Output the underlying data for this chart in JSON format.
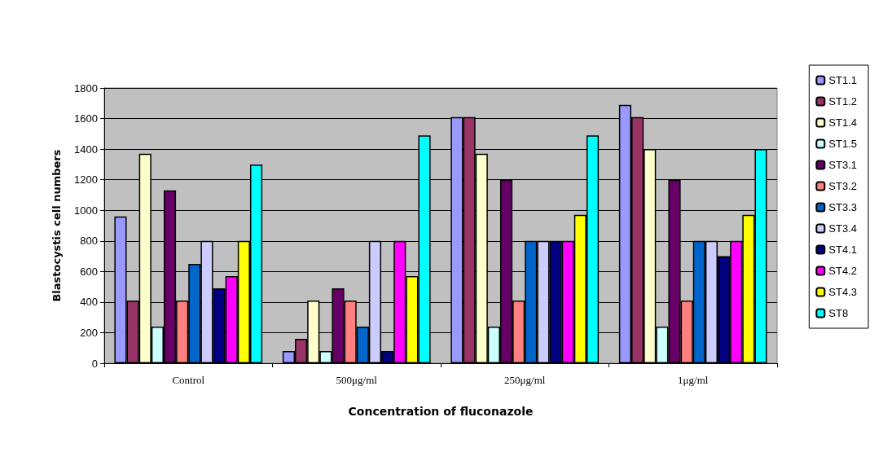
{
  "chart_data": {
    "type": "bar",
    "xlabel": "Concentration of fluconazole",
    "ylabel": "Blastocystis cell numbers",
    "categories": [
      "Control",
      "500μg/ml",
      "250μg/ml",
      "1μg/ml"
    ],
    "series": [
      {
        "name": "ST1.1",
        "color": "#9999ff",
        "values": [
          960,
          80,
          1610,
          1690
        ]
      },
      {
        "name": "ST1.2",
        "color": "#993366",
        "values": [
          410,
          160,
          1610,
          1610
        ]
      },
      {
        "name": "ST1.4",
        "color": "#ffffcc",
        "values": [
          1370,
          410,
          1370,
          1400
        ]
      },
      {
        "name": "ST1.5",
        "color": "#ccffff",
        "values": [
          240,
          80,
          240,
          240
        ]
      },
      {
        "name": "ST3.1",
        "color": "#660066",
        "values": [
          1130,
          490,
          1200,
          1200
        ]
      },
      {
        "name": "ST3.2",
        "color": "#ff8080",
        "values": [
          410,
          410,
          410,
          410
        ]
      },
      {
        "name": "ST3.3",
        "color": "#0066cc",
        "values": [
          650,
          240,
          800,
          800
        ]
      },
      {
        "name": "ST3.4",
        "color": "#ccccff",
        "values": [
          800,
          800,
          800,
          800
        ]
      },
      {
        "name": "ST4.1",
        "color": "#000080",
        "values": [
          490,
          80,
          800,
          700
        ]
      },
      {
        "name": "ST4.2",
        "color": "#ff00ff",
        "values": [
          570,
          800,
          800,
          800
        ]
      },
      {
        "name": "ST4.3",
        "color": "#ffff00",
        "values": [
          800,
          570,
          970,
          970
        ]
      },
      {
        "name": "ST8",
        "color": "#00ffff",
        "values": [
          1300,
          1490,
          1490,
          1400
        ]
      }
    ],
    "ylim": [
      0,
      1800
    ],
    "yticks": [
      0,
      200,
      400,
      600,
      800,
      1000,
      1200,
      1400,
      1600,
      1800
    ],
    "grid": "y",
    "legend": "right"
  }
}
